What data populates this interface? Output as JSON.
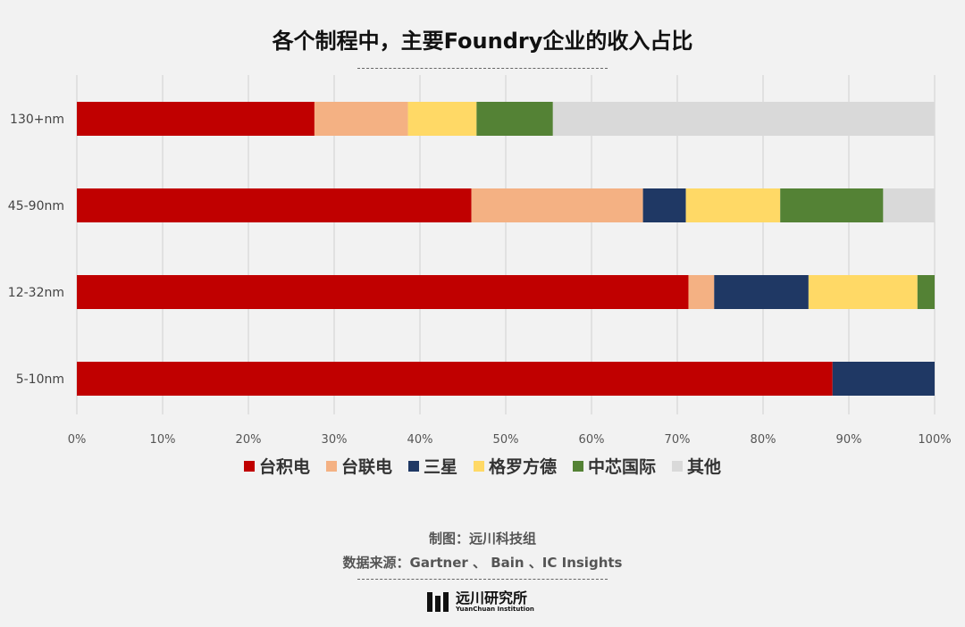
{
  "title": "各个制程中，主要Foundry企业的收入占比",
  "footer": {
    "credit": "制图：远川科技组",
    "source": "数据来源：Gartner 、 Bain 、IC Insights"
  },
  "logo": {
    "zh": "远川研究所",
    "en": "YuanChuan Institution"
  },
  "chart_data": {
    "type": "bar",
    "orientation": "horizontal",
    "stacked": true,
    "categories": [
      "130+nm",
      "45-90nm",
      "12-32nm",
      "5-10nm"
    ],
    "xlim": [
      0,
      100
    ],
    "x_ticks": [
      "0%",
      "10%",
      "20%",
      "30%",
      "40%",
      "50%",
      "60%",
      "70%",
      "80%",
      "90%",
      "100%"
    ],
    "grid": true,
    "legend_position": "bottom",
    "series": [
      {
        "name": "台积电",
        "color": "#c00000",
        "values": [
          27.7,
          46.0,
          71.3,
          88.1
        ]
      },
      {
        "name": "台联电",
        "color": "#f4b183",
        "values": [
          10.9,
          20.0,
          3.0,
          0
        ]
      },
      {
        "name": "三星",
        "color": "#1f3864",
        "values": [
          0,
          5.0,
          11.0,
          11.9
        ]
      },
      {
        "name": "格罗方德",
        "color": "#ffd966",
        "values": [
          8.0,
          11.0,
          12.7,
          0
        ]
      },
      {
        "name": "中芯国际",
        "color": "#548235",
        "values": [
          8.9,
          12.0,
          2.0,
          0
        ]
      },
      {
        "name": "其他",
        "color": "#d9d9d9",
        "values": [
          44.5,
          6.0,
          0,
          0
        ]
      }
    ]
  }
}
